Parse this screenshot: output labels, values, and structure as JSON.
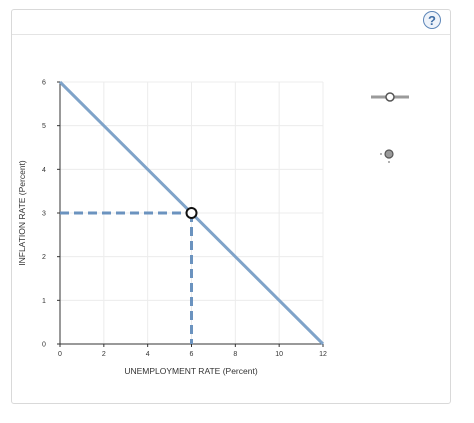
{
  "help": {
    "label": "?"
  },
  "chart_data": {
    "type": "line",
    "xlabel": "UNEMPLOYMENT RATE (Percent)",
    "ylabel": "INFLATION RATE (Percent)",
    "xlim": [
      0,
      12
    ],
    "ylim": [
      0,
      6
    ],
    "xticks": [
      0,
      2,
      4,
      6,
      8,
      10,
      12
    ],
    "yticks": [
      0,
      1,
      2,
      3,
      4,
      5,
      6
    ],
    "grid": true,
    "series": [
      {
        "x": [
          0,
          12
        ],
        "y": [
          6,
          0
        ],
        "color": "#7fa3c9"
      }
    ],
    "guides": {
      "x": 6,
      "y": 3,
      "style": "dashed",
      "color": "#6b93bf"
    },
    "point": {
      "x": 6,
      "y": 3
    }
  },
  "tools": [
    {
      "name": "line-drawing-tool-icon"
    },
    {
      "name": "point-drawing-tool-icon"
    }
  ]
}
